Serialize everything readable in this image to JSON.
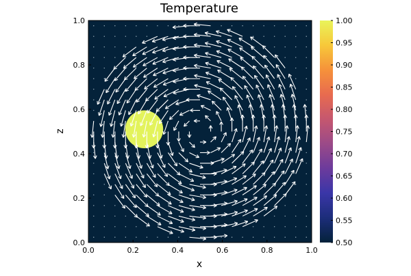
{
  "chart_data": {
    "type": "heatmap",
    "title": "Temperature",
    "xlabel": "x",
    "ylabel": "z",
    "xlim": [
      0,
      1
    ],
    "ylim": [
      0,
      1
    ],
    "xticks": [
      "0.0",
      "0.2",
      "0.4",
      "0.6",
      "0.8",
      "1.0"
    ],
    "yticks": [
      "0.0",
      "0.2",
      "0.4",
      "0.6",
      "0.8",
      "1.0"
    ],
    "colorbar": {
      "range": [
        0.5,
        1.0
      ],
      "ticks": [
        "0.50",
        "0.55",
        "0.60",
        "0.65",
        "0.70",
        "0.75",
        "0.80",
        "0.85",
        "0.90",
        "0.95",
        "1.00"
      ],
      "colormap": "thermal",
      "stops": [
        "#04223a",
        "#1c2d7a",
        "#3a36a8",
        "#6c3b9c",
        "#9b4a88",
        "#c5576f",
        "#e86b4f",
        "#f6923a",
        "#f7c83a",
        "#e9f45a"
      ]
    },
    "background_value": 0.5,
    "hot_blob": {
      "center": [
        0.25,
        0.51
      ],
      "radius": 0.085,
      "value": 1.0,
      "color": "#e3f35c"
    },
    "vector_field": {
      "type": "vortex",
      "center": [
        0.5,
        0.5
      ],
      "radius": 0.5,
      "rotation": "counterclockwise",
      "arrow_color": "#ffffff"
    },
    "grid": false,
    "legend": "none"
  }
}
